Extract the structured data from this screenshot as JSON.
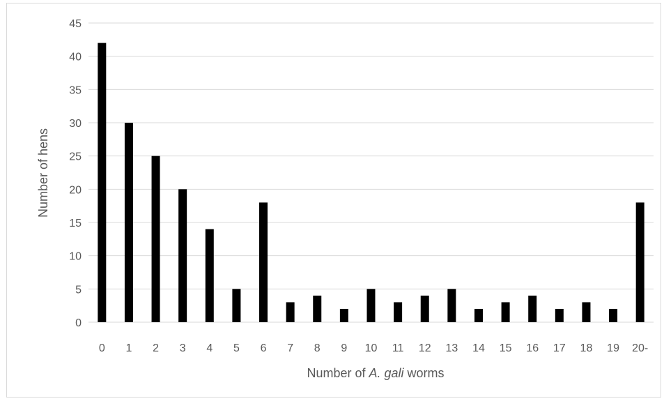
{
  "chart_data": {
    "type": "bar",
    "categories": [
      "0",
      "1",
      "2",
      "3",
      "4",
      "5",
      "6",
      "7",
      "8",
      "9",
      "10",
      "11",
      "12",
      "13",
      "14",
      "15",
      "16",
      "17",
      "18",
      "19",
      "20-"
    ],
    "values": [
      42,
      30,
      25,
      20,
      14,
      5,
      18,
      3,
      4,
      2,
      5,
      3,
      4,
      5,
      2,
      3,
      4,
      2,
      3,
      2,
      18
    ],
    "ylim": [
      0,
      45
    ],
    "yticks": [
      0,
      5,
      10,
      15,
      20,
      25,
      30,
      35,
      40,
      45
    ],
    "ylabel": "Number of hens",
    "xlabel": {
      "prefix": "Number of ",
      "italic": "A. gali",
      "suffix": " worms"
    },
    "grid": true,
    "bar_color": "#000000",
    "grid_color": "#d9d9d9",
    "text_color": "#595959"
  }
}
